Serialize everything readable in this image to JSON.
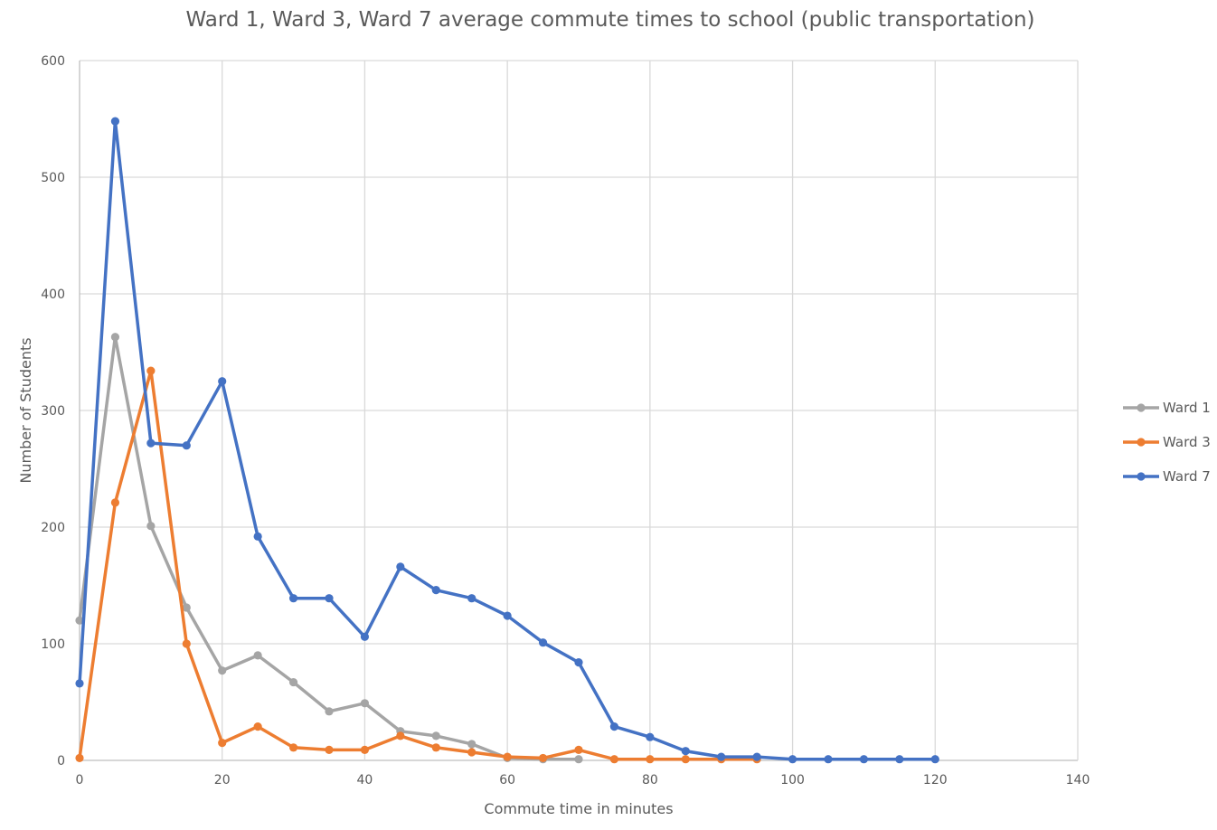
{
  "chart_data": {
    "type": "line",
    "title": "Ward 1, Ward 3, Ward 7 average commute times to school (public transportation)",
    "xlabel": "Commute time in minutes",
    "ylabel": "Number of Students",
    "xlim": [
      0,
      140
    ],
    "ylim": [
      0,
      600
    ],
    "x_ticks": [
      "0",
      "20",
      "40",
      "60",
      "80",
      "100",
      "120",
      "140"
    ],
    "y_ticks": [
      "0",
      "100",
      "200",
      "300",
      "400",
      "500",
      "600"
    ],
    "grid": true,
    "legend_position": "right",
    "series": [
      {
        "name": "Ward 1",
        "color": "#a5a5a5",
        "x": [
          0,
          5,
          10,
          15,
          20,
          25,
          30,
          35,
          40,
          45,
          50,
          55,
          60,
          65,
          70
        ],
        "values": [
          120,
          363,
          201,
          131,
          77,
          90,
          67,
          42,
          49,
          25,
          21,
          14,
          2,
          1,
          1
        ]
      },
      {
        "name": "Ward 3",
        "color": "#ed7d31",
        "x": [
          0,
          5,
          10,
          15,
          20,
          25,
          30,
          35,
          40,
          45,
          50,
          55,
          60,
          65,
          70,
          75,
          80,
          85,
          90,
          95
        ],
        "values": [
          2,
          221,
          334,
          100,
          15,
          29,
          11,
          9,
          9,
          21,
          11,
          7,
          3,
          2,
          9,
          1,
          1,
          1,
          1,
          1
        ]
      },
      {
        "name": "Ward 7",
        "color": "#4472c4",
        "x": [
          0,
          5,
          10,
          15,
          20,
          25,
          30,
          35,
          40,
          45,
          50,
          55,
          60,
          65,
          70,
          75,
          80,
          85,
          90,
          95,
          100,
          105,
          110,
          115,
          120
        ],
        "values": [
          66,
          548,
          272,
          270,
          325,
          192,
          139,
          139,
          106,
          166,
          146,
          139,
          124,
          101,
          84,
          29,
          20,
          8,
          3,
          3,
          1,
          1,
          1,
          1,
          1
        ]
      }
    ]
  }
}
